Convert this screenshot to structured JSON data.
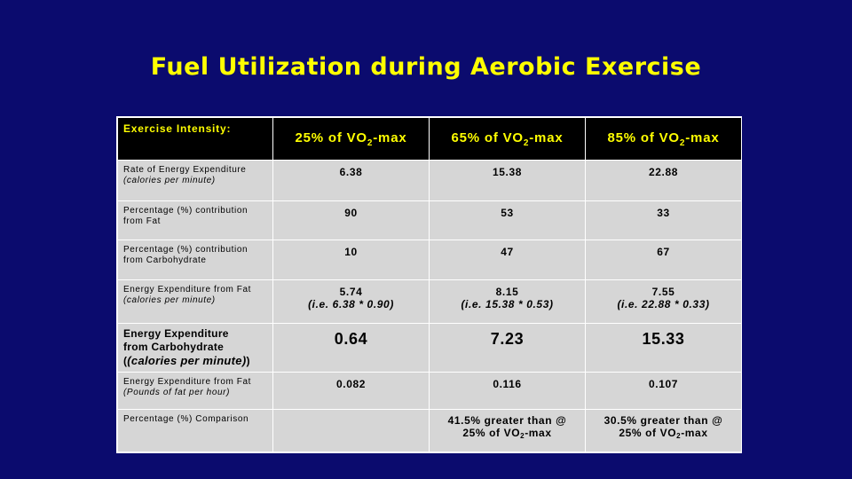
{
  "slide": {
    "title": "Fuel Utilization during Aerobic Exercise"
  },
  "table": {
    "header": {
      "label": "Exercise Intensity:",
      "col1_prefix": "25% of VO",
      "col1_sub": "2",
      "col1_suffix": "-max",
      "col2_prefix": "65% of VO",
      "col2_sub": "2",
      "col2_suffix": "-max",
      "col3_prefix": "85% of VO",
      "col3_sub": "2",
      "col3_suffix": "-max"
    },
    "rows": [
      {
        "label_line1": "Rate of Energy Expenditure",
        "label_line2": "(calories per minute)",
        "values": [
          "6.38",
          "15.38",
          "22.88"
        ]
      },
      {
        "label_line1": "Percentage (%) contribution",
        "label_line2": "from Fat",
        "values": [
          "90",
          "53",
          "33"
        ]
      },
      {
        "label_line1": "Percentage (%) contribution",
        "label_line2": "from Carbohydrate",
        "values": [
          "10",
          "47",
          "67"
        ]
      },
      {
        "label_line1": "Energy Expenditure from Fat",
        "label_line2": "(calories per minute)",
        "values": [
          "5.74",
          "8.15",
          "7.55"
        ],
        "notes": [
          "(i.e. 6.38 * 0.90)",
          "(i.e. 15.38 * 0.53)",
          "(i.e. 22.88 * 0.33)"
        ]
      },
      {
        "label_line1": "Energy Expenditure",
        "label_line2": "from Carbohydrate",
        "label_line3": "(calories per minute)",
        "values": [
          "0.64",
          "7.23",
          "15.33"
        ]
      },
      {
        "label_line1": "Energy Expenditure from Fat",
        "label_line2": "(Pounds of fat per hour)",
        "values": [
          "0.082",
          "0.116",
          "0.107"
        ]
      },
      {
        "label_line1": "Percentage (%) Comparison",
        "values": [
          "",
          "41.5% greater than @",
          "30.5% greater than @"
        ],
        "values_line2_prefix": "25% of VO",
        "values_line2_sub": "2",
        "values_line2_suffix": "-max"
      }
    ]
  }
}
